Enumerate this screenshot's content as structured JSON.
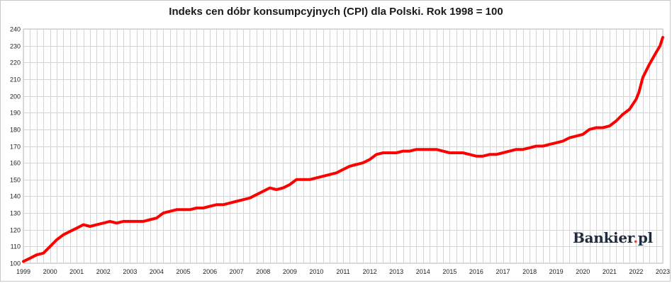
{
  "chart_data": {
    "type": "line",
    "title": "Indeks cen dóbr konsumpcyjnych (CPI) dla Polski. Rok 1998 = 100",
    "xlabel": "",
    "ylabel": "",
    "x_tick_labels": [
      "1999",
      "2000",
      "2001",
      "2002",
      "2003",
      "2004",
      "2005",
      "2006",
      "2007",
      "2008",
      "2009",
      "2010",
      "2011",
      "2012",
      "2013",
      "2014",
      "2015",
      "2016",
      "2017",
      "2018",
      "2019",
      "2020",
      "2021",
      "2022",
      "2023"
    ],
    "y_ticks": [
      100,
      110,
      120,
      130,
      140,
      150,
      160,
      170,
      180,
      190,
      200,
      210,
      220,
      230,
      240
    ],
    "xlim": [
      1999,
      2023
    ],
    "ylim": [
      100,
      240
    ],
    "grid": true,
    "legend": "none",
    "line_color": "#ff0000",
    "series": [
      {
        "x": [
          1999.0,
          1999.25,
          1999.5,
          1999.75,
          2000.0,
          2000.25,
          2000.5,
          2000.75,
          2001.0,
          2001.25,
          2001.5,
          2001.75,
          2002.0,
          2002.25,
          2002.5,
          2002.75,
          2003.0,
          2003.25,
          2003.5,
          2003.75,
          2004.0,
          2004.25,
          2004.5,
          2004.75,
          2005.0,
          2005.25,
          2005.5,
          2005.75,
          2006.0,
          2006.25,
          2006.5,
          2006.75,
          2007.0,
          2007.25,
          2007.5,
          2007.75,
          2008.0,
          2008.25,
          2008.5,
          2008.75,
          2009.0,
          2009.25,
          2009.5,
          2009.75,
          2010.0,
          2010.25,
          2010.5,
          2010.75,
          2011.0,
          2011.25,
          2011.5,
          2011.75,
          2012.0,
          2012.25,
          2012.5,
          2012.75,
          2013.0,
          2013.25,
          2013.5,
          2013.75,
          2014.0,
          2014.25,
          2014.5,
          2014.75,
          2015.0,
          2015.25,
          2015.5,
          2015.75,
          2016.0,
          2016.25,
          2016.5,
          2016.75,
          2017.0,
          2017.25,
          2017.5,
          2017.75,
          2018.0,
          2018.25,
          2018.5,
          2018.75,
          2019.0,
          2019.25,
          2019.5,
          2019.75,
          2020.0,
          2020.25,
          2020.5,
          2020.75,
          2021.0,
          2021.25,
          2021.5,
          2021.75,
          2022.0,
          2022.1,
          2022.25,
          2022.5,
          2022.75,
          2022.9,
          2023.0
        ],
        "values": [
          101,
          103,
          105,
          106,
          110,
          114,
          117,
          119,
          121,
          123,
          122,
          123,
          124,
          125,
          124,
          125,
          125,
          125,
          125,
          126,
          127,
          130,
          131,
          132,
          132,
          132,
          133,
          133,
          134,
          135,
          135,
          136,
          137,
          138,
          139,
          141,
          143,
          145,
          144,
          145,
          147,
          150,
          150,
          150,
          151,
          152,
          153,
          154,
          156,
          158,
          159,
          160,
          162,
          165,
          166,
          166,
          166,
          167,
          167,
          168,
          168,
          168,
          168,
          167,
          166,
          166,
          166,
          165,
          164,
          164,
          165,
          165,
          166,
          167,
          168,
          168,
          169,
          170,
          170,
          171,
          172,
          173,
          175,
          176,
          177,
          180,
          181,
          181,
          182,
          185,
          189,
          192,
          198,
          202,
          211,
          219,
          226,
          230,
          235
        ]
      }
    ]
  },
  "logo": {
    "brand": "Bankier",
    "dot": ".",
    "suffix": "pl"
  }
}
